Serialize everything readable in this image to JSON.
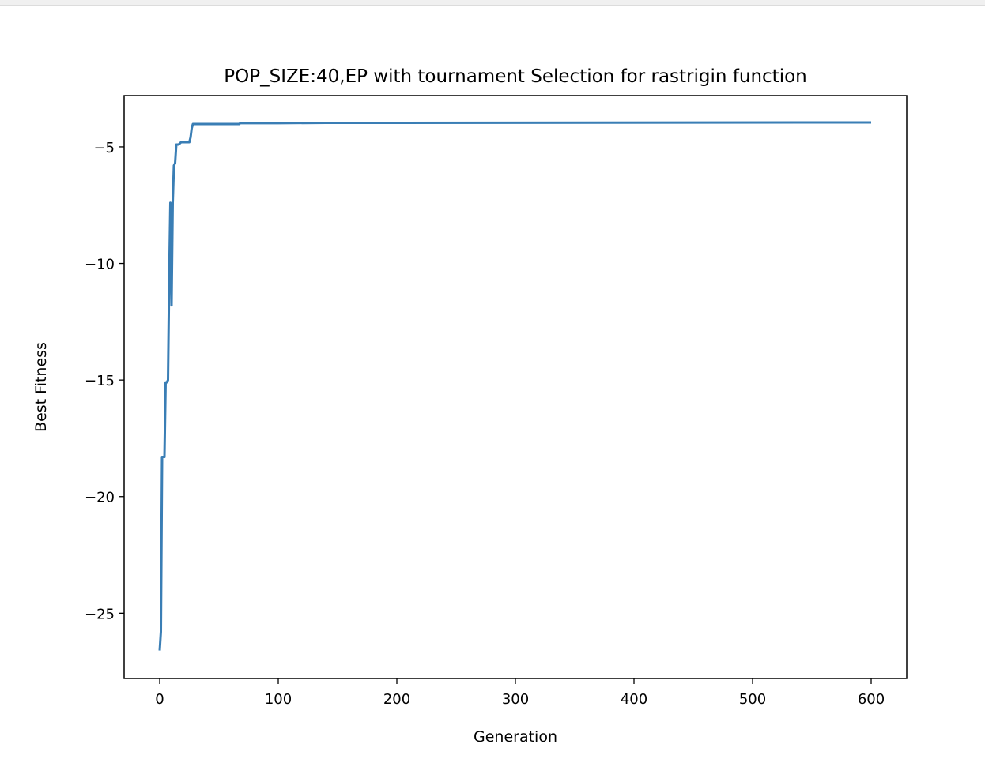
{
  "chart_data": {
    "type": "line",
    "title": "POP_SIZE:40,EP with tournament Selection for rastrigin function",
    "xlabel": "Generation",
    "ylabel": "Best Fitness",
    "xlim": [
      -30,
      630
    ],
    "ylim": [
      -27.8,
      -2.8
    ],
    "grid": false,
    "line_color": "#3a7eb5",
    "xticks": [
      {
        "value": 0,
        "label": "0"
      },
      {
        "value": 100,
        "label": "100"
      },
      {
        "value": 200,
        "label": "200"
      },
      {
        "value": 300,
        "label": "300"
      },
      {
        "value": 400,
        "label": "400"
      },
      {
        "value": 500,
        "label": "500"
      },
      {
        "value": 600,
        "label": "600"
      }
    ],
    "yticks": [
      {
        "value": -5,
        "label": "−5"
      },
      {
        "value": -10,
        "label": "−10"
      },
      {
        "value": -15,
        "label": "−15"
      },
      {
        "value": -20,
        "label": "−20"
      },
      {
        "value": -25,
        "label": "−25"
      }
    ],
    "series": [
      {
        "x": [
          0,
          1,
          2,
          3,
          4,
          5,
          6,
          7,
          8,
          9,
          10,
          11,
          12,
          13,
          14,
          15,
          16,
          18,
          20,
          22,
          25,
          26,
          27,
          28,
          30,
          40,
          67,
          68,
          100,
          140,
          600
        ],
        "y": [
          -26.6,
          -25.8,
          -18.3,
          -18.3,
          -18.3,
          -15.1,
          -15.1,
          -15.0,
          -10.7,
          -7.4,
          -11.8,
          -7.4,
          -5.8,
          -5.7,
          -4.9,
          -4.9,
          -4.9,
          -4.8,
          -4.8,
          -4.8,
          -4.8,
          -4.6,
          -4.2,
          -4.02,
          -4.02,
          -4.02,
          -4.02,
          -3.98,
          -3.98,
          -3.97,
          -3.95
        ]
      }
    ]
  }
}
